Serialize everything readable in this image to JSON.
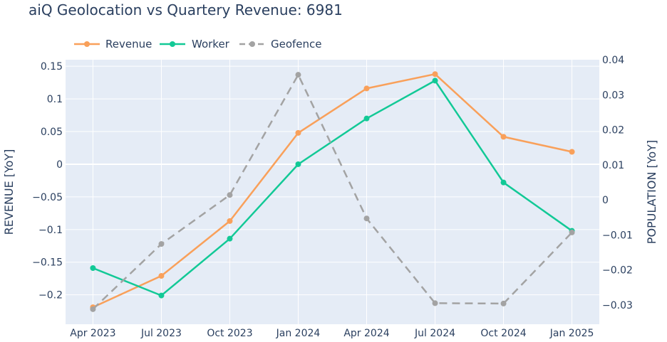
{
  "chart_data": {
    "type": "line",
    "title": "aiQ Geolocation vs Quartery Revenue: 6981",
    "categories": [
      "Apr 2023",
      "Jul 2023",
      "Oct 2023",
      "Jan 2024",
      "Apr 2024",
      "Jul 2024",
      "Oct 2024",
      "Jan 2025"
    ],
    "y_left": {
      "label": "REVENUE [YoY]",
      "range": [
        -0.245,
        0.16
      ],
      "ticks": [
        0.15,
        0.1,
        0.05,
        0,
        -0.05,
        -0.1,
        -0.15,
        -0.2
      ],
      "tick_labels": [
        "0.15",
        "0.1",
        "0.05",
        "0",
        "−0.05",
        "−0.1",
        "−0.15",
        "−0.2"
      ]
    },
    "y_right": {
      "label": "POPULATION [YoY]",
      "range": [
        -0.0355,
        0.04
      ],
      "ticks": [
        0.04,
        0.03,
        0.02,
        0.01,
        0,
        -0.01,
        -0.02,
        -0.03
      ],
      "tick_labels": [
        "0.04",
        "0.03",
        "0.02",
        "0.01",
        "0",
        "−0.01",
        "−0.02",
        "−0.03"
      ]
    },
    "series": [
      {
        "name": "Revenue",
        "axis": "left",
        "color": "#f9a05a",
        "dash": "solid",
        "values": [
          -0.219,
          -0.171,
          -0.087,
          0.048,
          0.116,
          0.138,
          0.042,
          0.019
        ]
      },
      {
        "name": "Worker",
        "axis": "left",
        "color": "#12c996",
        "dash": "solid",
        "values": [
          -0.159,
          -0.201,
          -0.114,
          0.0,
          0.07,
          0.128,
          -0.028,
          -0.102
        ]
      },
      {
        "name": "Geofence",
        "axis": "right",
        "color": "#a3a3a3",
        "dash": "dash",
        "values": [
          -0.0312,
          -0.0126,
          0.0014,
          0.0357,
          -0.0053,
          -0.0295,
          -0.0296,
          -0.0093
        ]
      }
    ],
    "grid": true,
    "legend_position": "top-left"
  }
}
